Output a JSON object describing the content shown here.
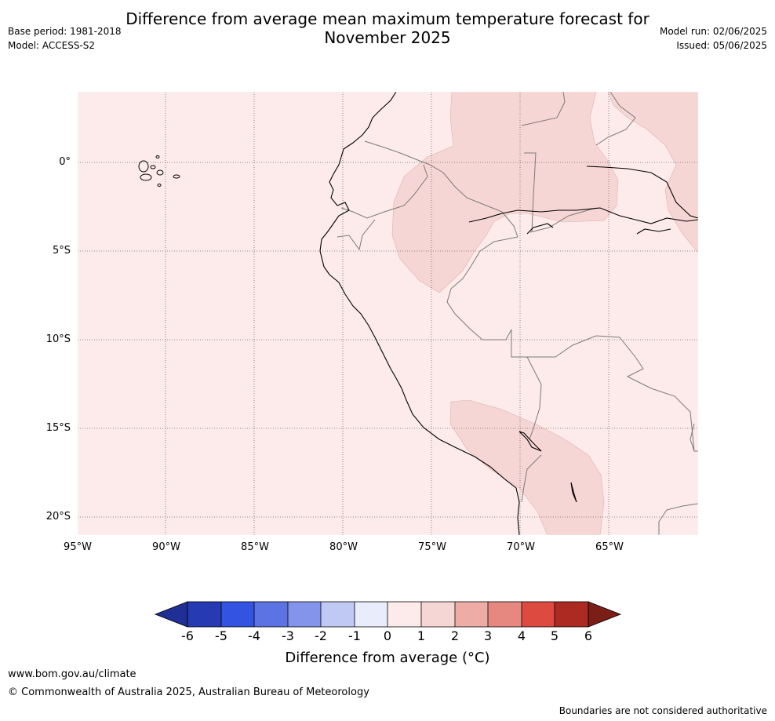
{
  "title_line1": "Difference from average mean maximum temperature forecast for",
  "title_line2": "November 2025",
  "base_period": "Base period: 1981-2018",
  "model": "Model: ACCESS-S2",
  "model_run": "Model run: 02/06/2025",
  "issued": "Issued: 05/06/2025",
  "lat_labels": [
    "0°",
    "5°S",
    "10°S",
    "15°S",
    "20°S"
  ],
  "lon_labels": [
    "95°W",
    "90°W",
    "85°W",
    "80°W",
    "75°W",
    "70°W",
    "65°W"
  ],
  "colorbar": {
    "ticks": [
      "-6",
      "-5",
      "-4",
      "-3",
      "-2",
      "-1",
      "0",
      "1",
      "2",
      "3",
      "4",
      "5",
      "6"
    ],
    "colors": [
      "#1f2f96",
      "#253ab3",
      "#3354e0",
      "#5b73e3",
      "#8494ea",
      "#c0c8f4",
      "#e8ecfb",
      "#fcebea",
      "#f6d6d4",
      "#eeaca6",
      "#e68880",
      "#dc4a40",
      "#ad2a22",
      "#7a1e17"
    ],
    "label": "Difference from average (°C)"
  },
  "legend_colors": {
    "zero_to_one": "#fcebea",
    "one_to_two": "#f6d6d4"
  },
  "footer": {
    "url": "www.bom.gov.au/climate",
    "copyright": "© Commonwealth of Australia 2025, Australian Bureau of Meteorology",
    "disclaimer": "Boundaries are not considered authoritative"
  }
}
